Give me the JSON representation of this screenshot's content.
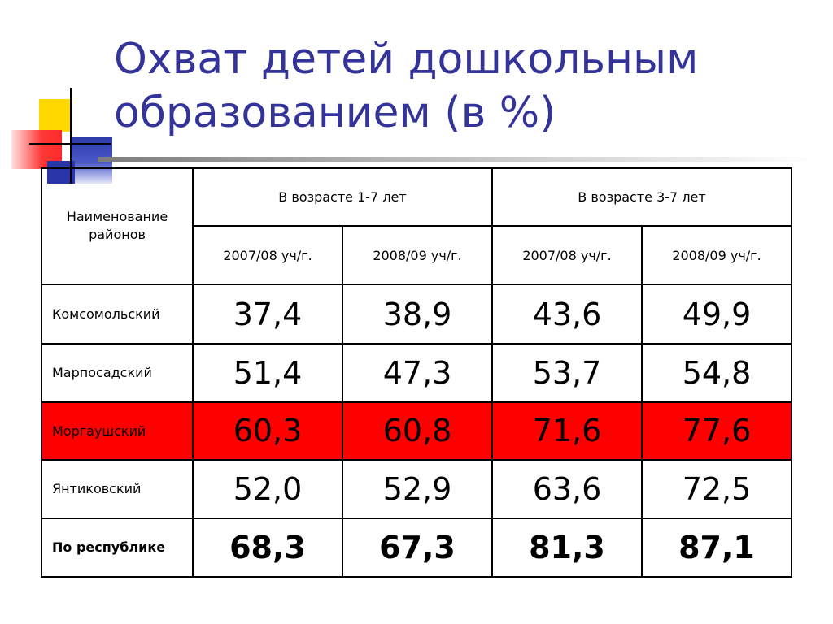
{
  "title": {
    "line1": "Охват детей дошкольным",
    "line2": "образованием (в %)"
  },
  "table": {
    "district_header": "Наименование районов",
    "groups": [
      {
        "label": "В возрасте 1-7 лет"
      },
      {
        "label": "В возрасте 3-7 лет"
      }
    ],
    "years": [
      "2007/08 уч/г.",
      "2008/09 уч/г.",
      "2007/08 уч/г.",
      "2008/09 уч/г."
    ],
    "rows": [
      {
        "name": "Комсомольский",
        "values": [
          "37,4",
          "38,9",
          "43,6",
          "49,9"
        ]
      },
      {
        "name": "Марпосадский",
        "values": [
          "51,4",
          "47,3",
          "53,7",
          "54,8"
        ]
      },
      {
        "name": "Моргаушский",
        "values": [
          "60,3",
          "60,8",
          "71,6",
          "77,6"
        ],
        "highlight": "#ff0000"
      },
      {
        "name": "Янтиковский",
        "values": [
          "52,0",
          "52,9",
          "63,6",
          "72,5"
        ]
      }
    ],
    "total": {
      "name": "По республике",
      "values": [
        "68,3",
        "67,3",
        "81,3",
        "87,1"
      ]
    }
  },
  "colors": {
    "title": "#333399",
    "highlight": "#ff0000"
  }
}
